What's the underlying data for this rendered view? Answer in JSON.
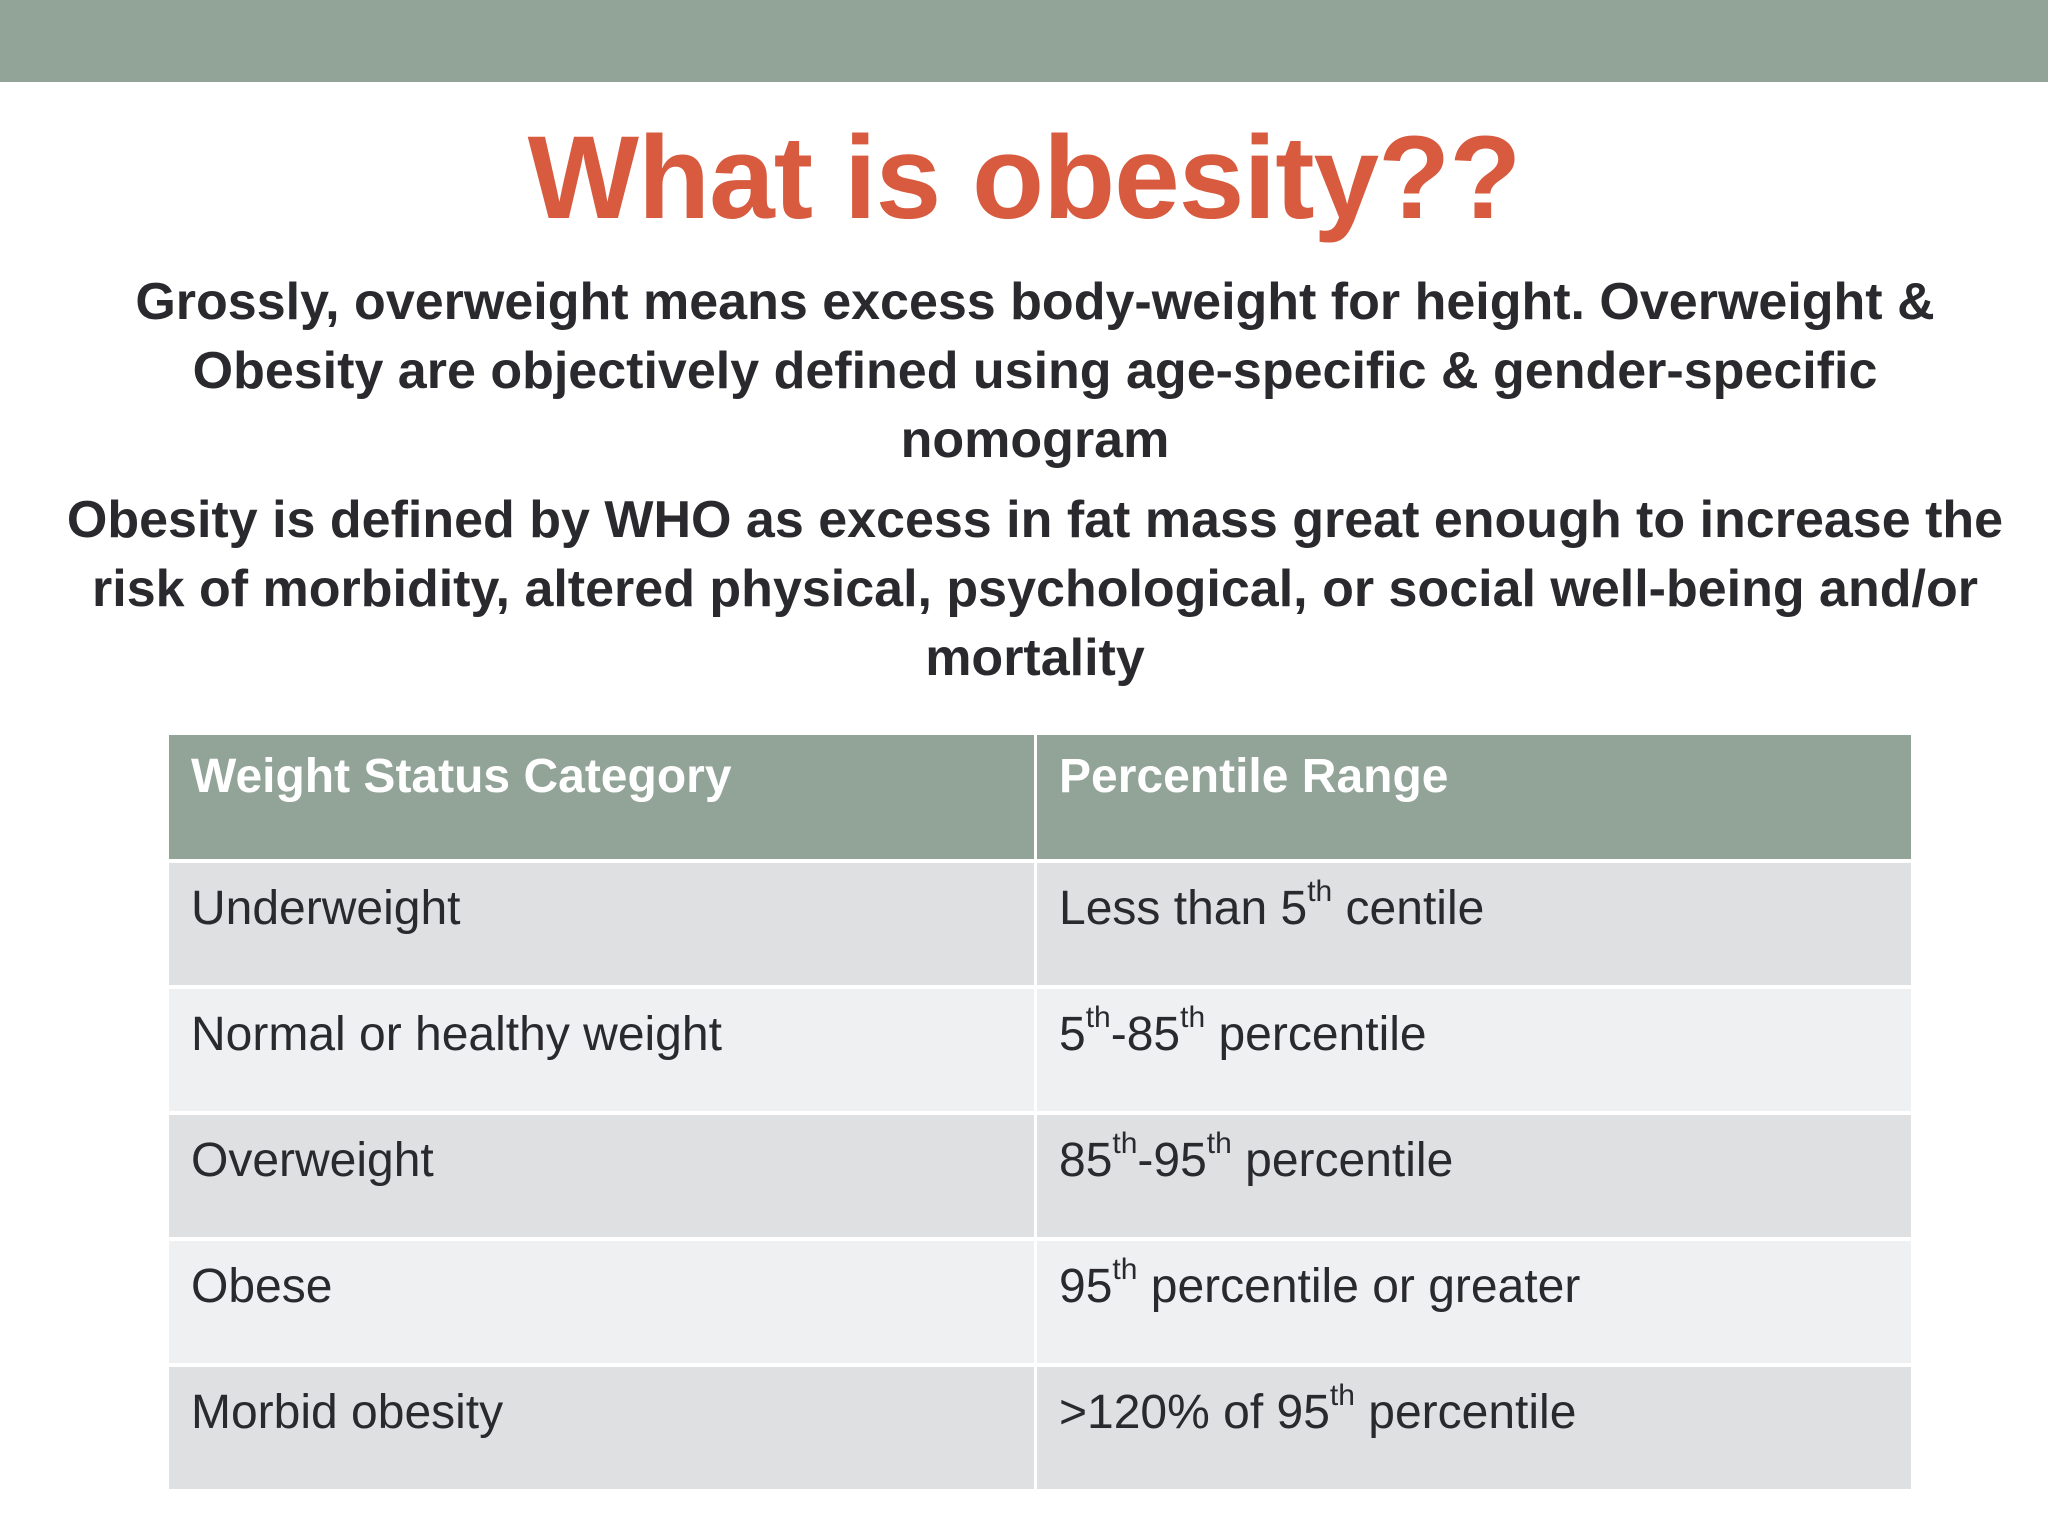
{
  "colors": {
    "band": "#92a398",
    "title": "#d85a3f",
    "text": "#2a2a2e",
    "row_dark": "#dfe0e2",
    "row_light": "#eff0f2"
  },
  "slide": {
    "title": "What is obesity??",
    "paragraph_1": "Grossly, overweight means excess body-weight for height. Overweight & Obesity are objectively defined using age-specific & gender-specific nomogram",
    "paragraph_2": "Obesity is defined by WHO as excess in fat mass great enough to increase the risk of morbidity, altered physical, psychological, or social well-being and/or mortality"
  },
  "table": {
    "headers": [
      "Weight Status Category",
      "Percentile Range"
    ],
    "rows": [
      {
        "category": "Underweight",
        "range": [
          {
            "text": "Less than 5"
          },
          {
            "text": "th",
            "sup": true
          },
          {
            "text": " centile"
          }
        ]
      },
      {
        "category": "Normal or healthy weight",
        "range": [
          {
            "text": "5"
          },
          {
            "text": "th",
            "sup": true
          },
          {
            "text": "-85"
          },
          {
            "text": "th",
            "sup": true
          },
          {
            "text": " percentile"
          }
        ]
      },
      {
        "category": "Overweight",
        "range": [
          {
            "text": "85"
          },
          {
            "text": "th",
            "sup": true
          },
          {
            "text": "-95"
          },
          {
            "text": "th",
            "sup": true
          },
          {
            "text": " percentile"
          }
        ]
      },
      {
        "category": "Obese",
        "range": [
          {
            "text": "95"
          },
          {
            "text": "th",
            "sup": true
          },
          {
            "text": " percentile or greater"
          }
        ]
      },
      {
        "category": "Morbid obesity",
        "range": [
          {
            "text": ">120% of 95"
          },
          {
            "text": "th",
            "sup": true
          },
          {
            "text": " percentile"
          }
        ]
      }
    ]
  }
}
